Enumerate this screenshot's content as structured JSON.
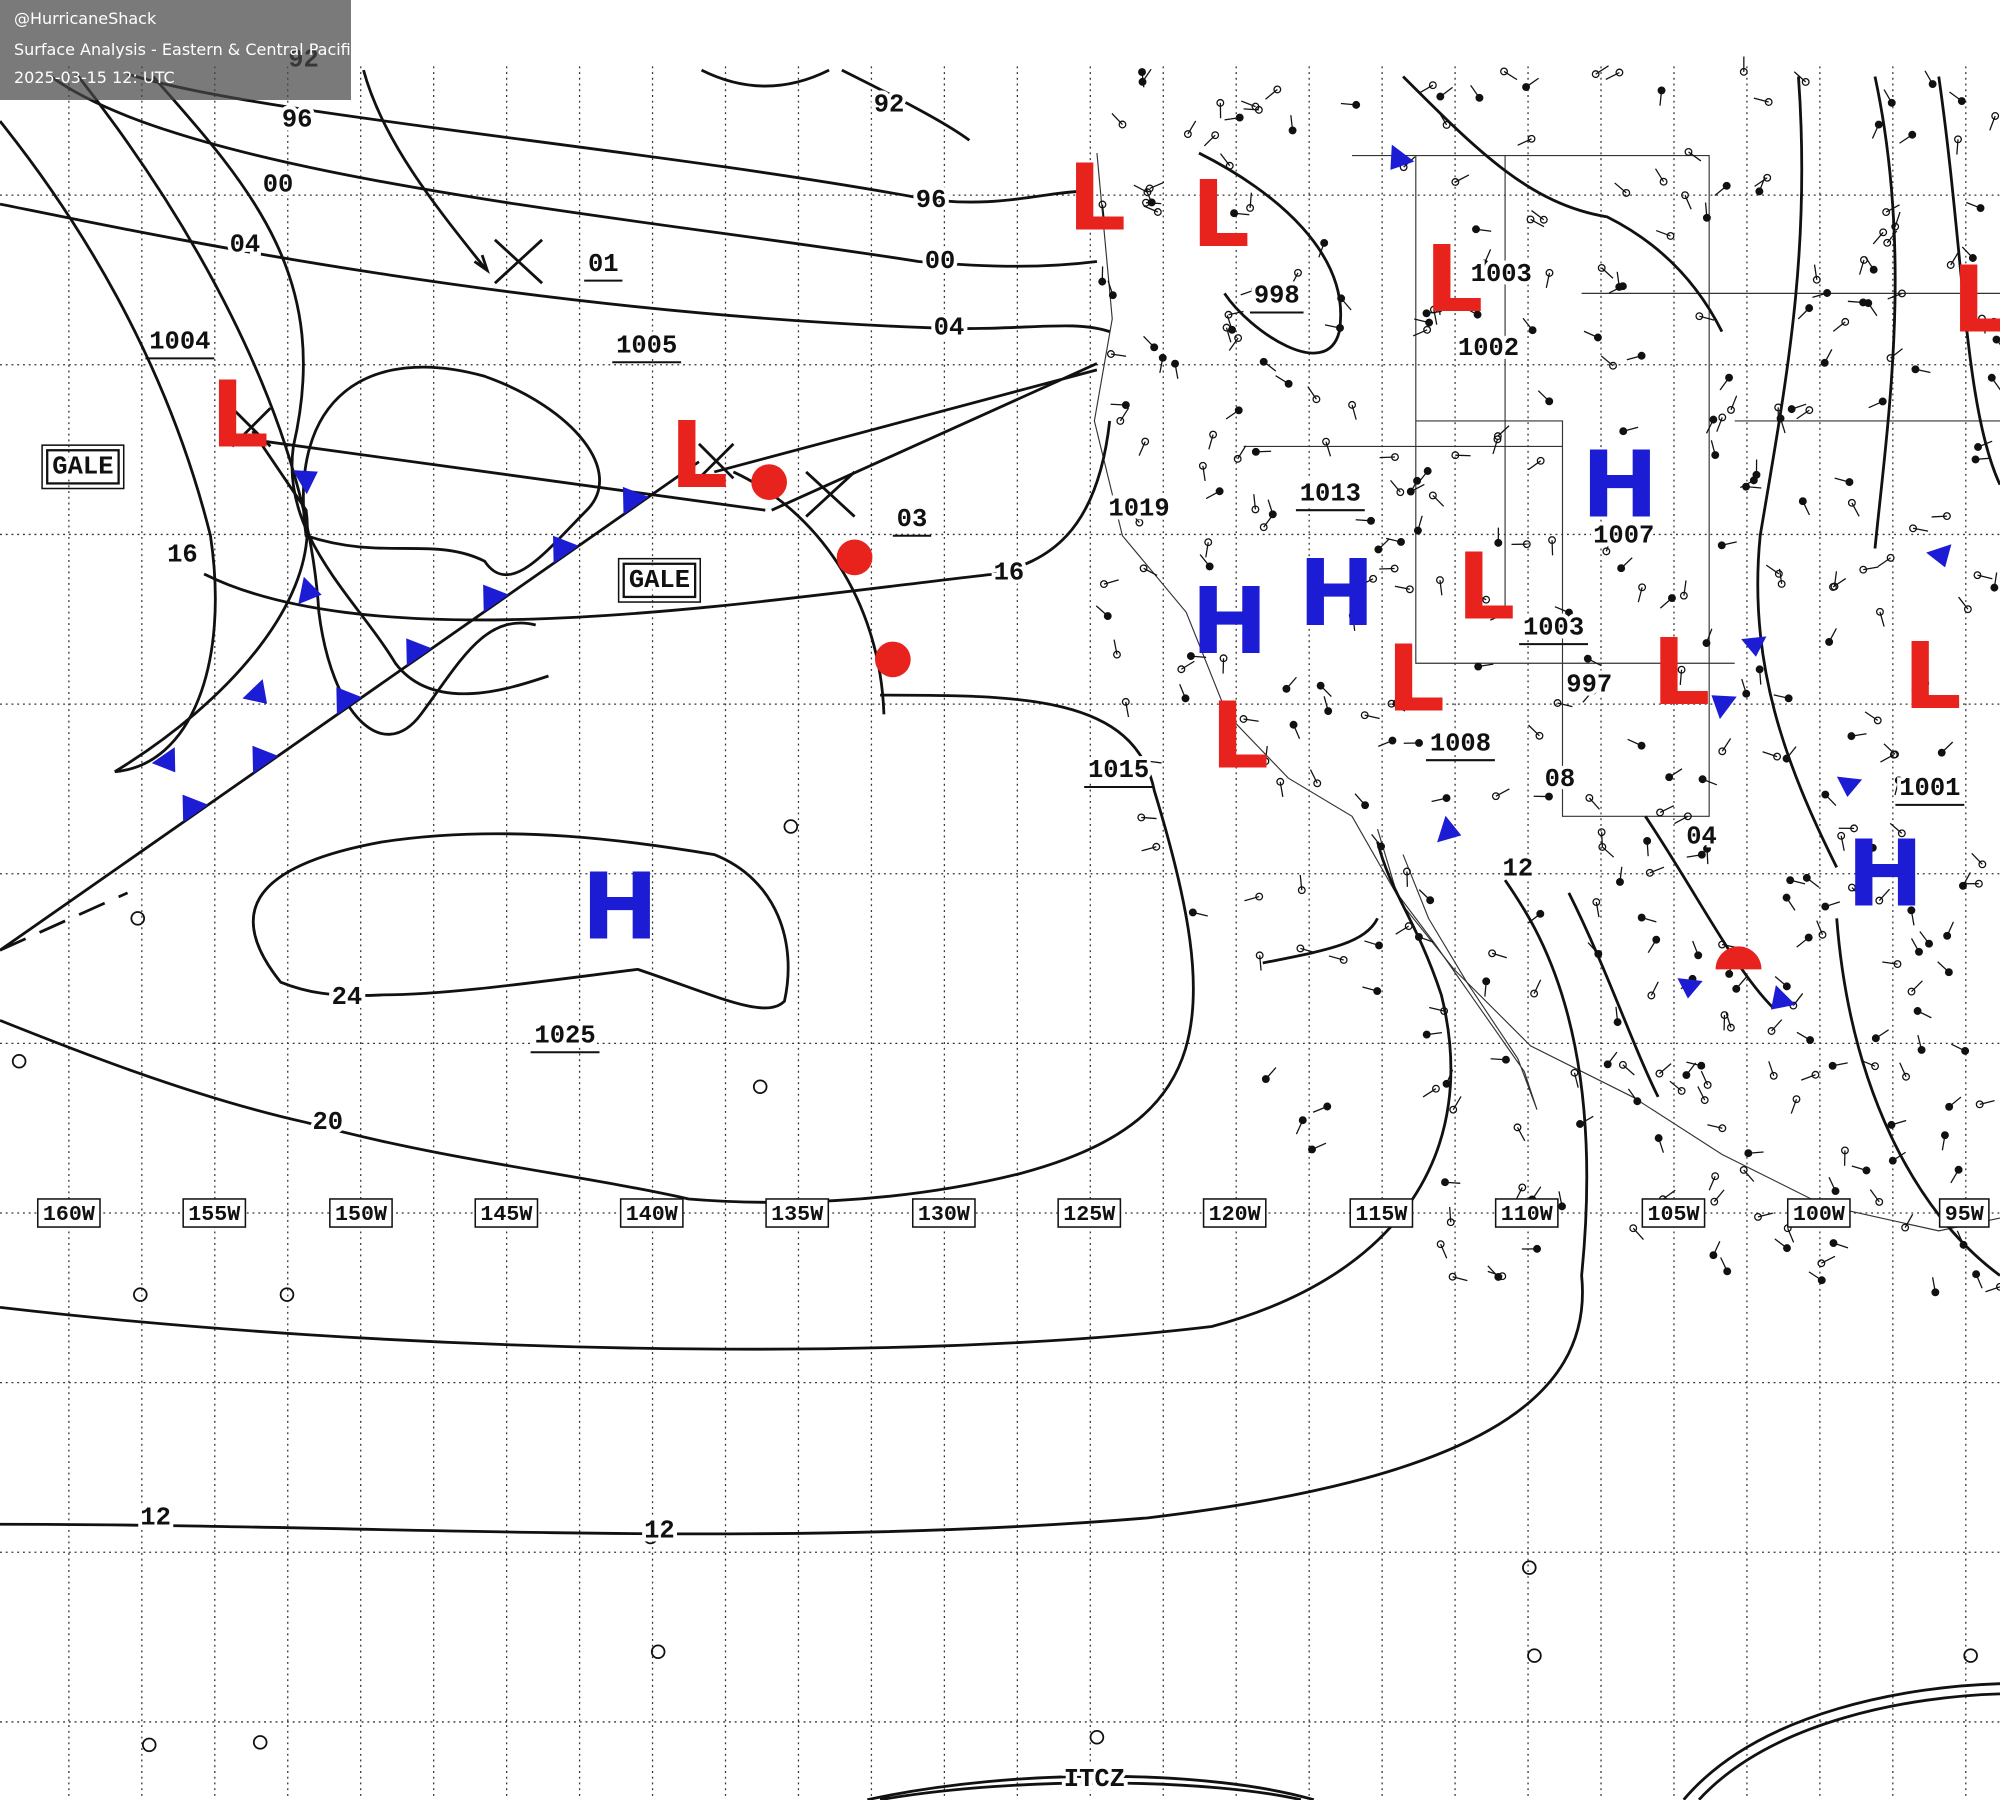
{
  "header": {
    "handle": "@HurricaneShack",
    "title": "Surface Analysis - Eastern & Central Pacific Ocean",
    "timestamp": "2025-03-15 12: UTC"
  },
  "longitudes": [
    "160W",
    "155W",
    "150W",
    "145W",
    "140W",
    "135W",
    "130W",
    "125W",
    "120W",
    "115W",
    "110W",
    "105W",
    "100W",
    "95W"
  ],
  "isobar_labels": [
    {
      "text": "92",
      "underline": false
    },
    {
      "text": "92",
      "underline": false
    },
    {
      "text": "96",
      "underline": false
    },
    {
      "text": "96",
      "underline": false
    },
    {
      "text": "00",
      "underline": false
    },
    {
      "text": "00",
      "underline": false
    },
    {
      "text": "04",
      "underline": false
    },
    {
      "text": "04",
      "underline": false
    },
    {
      "text": "01",
      "underline": true
    },
    {
      "text": "1004",
      "underline": true
    },
    {
      "text": "1005",
      "underline": true
    },
    {
      "text": "16",
      "underline": false
    },
    {
      "text": "16",
      "underline": false
    },
    {
      "text": "03",
      "underline": true
    },
    {
      "text": "1015",
      "underline": true
    },
    {
      "text": "24",
      "underline": false
    },
    {
      "text": "1025",
      "underline": true
    },
    {
      "text": "20",
      "underline": false
    },
    {
      "text": "12",
      "underline": false
    },
    {
      "text": "12",
      "underline": false
    },
    {
      "text": "1013",
      "underline": true
    },
    {
      "text": "1019",
      "underline": false
    },
    {
      "text": "998",
      "underline": true
    },
    {
      "text": "1003",
      "underline": false
    },
    {
      "text": "1002",
      "underline": false
    },
    {
      "text": "1007",
      "underline": false
    },
    {
      "text": "1003",
      "underline": true
    },
    {
      "text": "1008",
      "underline": true
    },
    {
      "text": "997",
      "underline": false
    },
    {
      "text": "1001",
      "underline": true
    },
    {
      "text": "08",
      "underline": false
    },
    {
      "text": "12",
      "underline": false
    },
    {
      "text": "04",
      "underline": false
    }
  ],
  "gale_labels": [
    "GALE",
    "GALE"
  ],
  "systems": [
    {
      "label": "L",
      "color": "#e8231e"
    },
    {
      "label": "L",
      "color": "#e8231e"
    },
    {
      "label": "H",
      "color": "#1c1cd4"
    },
    {
      "label": "L",
      "color": "#e8231e"
    },
    {
      "label": "L",
      "color": "#e8231e"
    },
    {
      "label": "H",
      "color": "#1c1cd4"
    },
    {
      "label": "H",
      "color": "#1c1cd4"
    },
    {
      "label": "L",
      "color": "#e8231e"
    },
    {
      "label": "L",
      "color": "#e8231e"
    },
    {
      "label": "L",
      "color": "#e8231e"
    },
    {
      "label": "L",
      "color": "#e8231e"
    },
    {
      "label": "L",
      "color": "#e8231e"
    },
    {
      "label": "H",
      "color": "#1c1cd4"
    },
    {
      "label": "L",
      "color": "#e8231e"
    },
    {
      "label": "H",
      "color": "#1c1cd4"
    },
    {
      "label": "L",
      "color": "#e8231e"
    }
  ],
  "itcz": "ITCZ"
}
